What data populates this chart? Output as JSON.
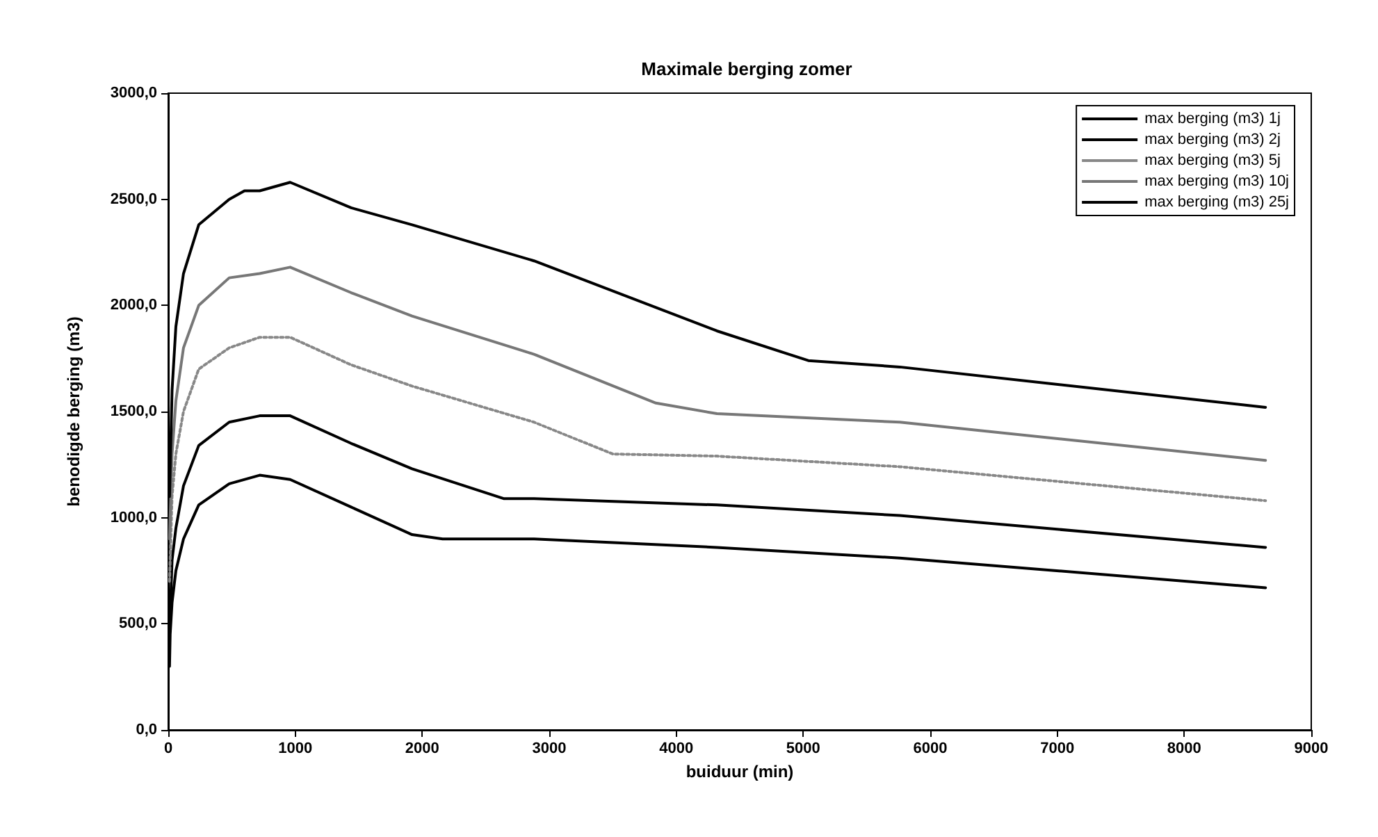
{
  "chart_data": {
    "type": "line",
    "title": "Maximale berging zomer",
    "xlabel": "buiduur (min)",
    "ylabel": "benodigde berging (m3)",
    "xlim": [
      0,
      9000
    ],
    "xticks": [
      0,
      1000,
      2000,
      3000,
      4000,
      5000,
      6000,
      7000,
      8000,
      9000
    ],
    "ylim": [
      0,
      3000
    ],
    "yticks": [
      {
        "value": 0,
        "label": "0,0"
      },
      {
        "value": 500,
        "label": "500,0"
      },
      {
        "value": 1000,
        "label": "1000,0"
      },
      {
        "value": 1500,
        "label": "1500,0"
      },
      {
        "value": 2000,
        "label": "2000,0"
      },
      {
        "value": 2500,
        "label": "2500,0"
      },
      {
        "value": 3000,
        "label": "3000,0"
      }
    ],
    "grid": false,
    "legend": "top right",
    "marker": "none",
    "series": [
      {
        "name": "max berging (m3) 1j",
        "color": "#000000",
        "line_style": "solid",
        "x": [
          10,
          15,
          30,
          60,
          120,
          240,
          480,
          720,
          960,
          1440,
          1920,
          2160,
          2880,
          4320,
          5760,
          8640
        ],
        "values": [
          300,
          450,
          600,
          750,
          900,
          1060,
          1160,
          1200,
          1180,
          1050,
          920,
          900,
          900,
          860,
          810,
          670
        ]
      },
      {
        "name": "max berging (m3) 2j",
        "color": "#000000",
        "line_style": "solid",
        "x": [
          10,
          30,
          60,
          120,
          240,
          480,
          720,
          960,
          1440,
          1920,
          2640,
          2880,
          4320,
          5760,
          8640
        ],
        "values": [
          450,
          800,
          950,
          1150,
          1340,
          1450,
          1480,
          1480,
          1350,
          1230,
          1090,
          1090,
          1060,
          1010,
          860
        ]
      },
      {
        "name": "max berging (m3) 5j",
        "color": "#888888",
        "line_style": "dotted",
        "x": [
          10,
          30,
          60,
          120,
          240,
          480,
          720,
          960,
          1440,
          1920,
          2880,
          3500,
          4320,
          5760,
          8640
        ],
        "values": [
          700,
          1100,
          1300,
          1500,
          1700,
          1800,
          1850,
          1850,
          1720,
          1620,
          1450,
          1300,
          1290,
          1240,
          1080
        ]
      },
      {
        "name": "max berging (m3) 10j",
        "color": "#777777",
        "line_style": "solid",
        "x": [
          10,
          30,
          60,
          120,
          240,
          480,
          720,
          960,
          1440,
          1920,
          2880,
          3840,
          4320,
          5760,
          8640
        ],
        "values": [
          900,
          1300,
          1550,
          1800,
          2000,
          2130,
          2150,
          2180,
          2060,
          1950,
          1770,
          1540,
          1490,
          1450,
          1270
        ]
      },
      {
        "name": "max berging (m3) 25j",
        "color": "#000000",
        "line_style": "solid",
        "x": [
          10,
          30,
          60,
          120,
          240,
          480,
          600,
          720,
          960,
          1440,
          1920,
          2880,
          4320,
          5040,
          5760,
          8640
        ],
        "values": [
          1100,
          1600,
          1900,
          2150,
          2380,
          2500,
          2540,
          2540,
          2580,
          2460,
          2380,
          2210,
          1880,
          1740,
          1710,
          1520
        ]
      }
    ]
  }
}
